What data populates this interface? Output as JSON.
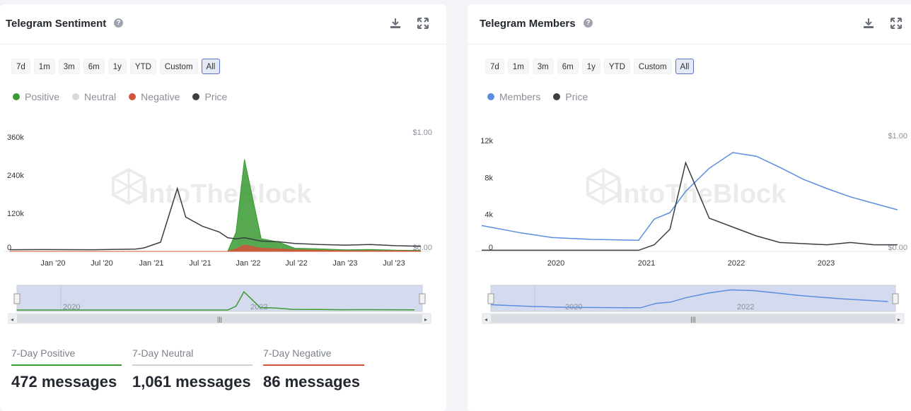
{
  "left": {
    "title": "Telegram Sentiment",
    "ranges": [
      "7d",
      "1m",
      "3m",
      "6m",
      "1y",
      "YTD",
      "Custom",
      "All"
    ],
    "active_range": "All",
    "legend": [
      {
        "label": "Positive",
        "color": "#3a9a32"
      },
      {
        "label": "Neutral",
        "color": "#d8d8d8"
      },
      {
        "label": "Negative",
        "color": "#d0543a"
      },
      {
        "label": "Price",
        "color": "#3a3d42"
      }
    ],
    "watermark": "IntoTheBlock",
    "navigator_labels": [
      "2020",
      "2022"
    ],
    "stats": [
      {
        "label": "7-Day Positive",
        "value": "472 messages",
        "color": "#3a9a32"
      },
      {
        "label": "7-Day Neutral",
        "value": "1,061 messages",
        "color": "#d0d0d0"
      },
      {
        "label": "7-Day Negative",
        "value": "86 messages",
        "color": "#d0543a"
      }
    ]
  },
  "right": {
    "title": "Telegram Members",
    "ranges": [
      "7d",
      "1m",
      "3m",
      "6m",
      "1y",
      "YTD",
      "Custom",
      "All"
    ],
    "active_range": "All",
    "legend": [
      {
        "label": "Members",
        "color": "#5b8dde"
      },
      {
        "label": "Price",
        "color": "#3a3d42"
      }
    ],
    "watermark": "IntoTheBlock",
    "navigator_labels": [
      "2020",
      "2022"
    ]
  },
  "chart_data": [
    {
      "type": "area",
      "title": "Telegram Sentiment",
      "x_ticks": [
        "Jan '20",
        "Jul '20",
        "Jan '21",
        "Jul '21",
        "Jan '22",
        "Jul '22",
        "Jan '23",
        "Jul '23"
      ],
      "y_ticks_left": [
        "0",
        "120k",
        "240k",
        "360k"
      ],
      "y_ticks_right": [
        "$0.00",
        "$1.00"
      ],
      "ylim_left": [
        0,
        360000
      ],
      "ylim_right": [
        0,
        1.0
      ],
      "x_dates": [
        "2019-09",
        "2020-01",
        "2020-07",
        "2020-12",
        "2021-01",
        "2021-03",
        "2021-05",
        "2021-06",
        "2021-08",
        "2021-10",
        "2021-11",
        "2021-12",
        "2022-01",
        "2022-03",
        "2022-05",
        "2022-07",
        "2022-10",
        "2023-01",
        "2023-04",
        "2023-07",
        "2023-10"
      ],
      "series": [
        {
          "name": "Positive",
          "values": [
            0,
            0,
            0,
            0,
            0,
            0,
            0,
            0,
            0,
            0,
            0,
            60000,
            290000,
            40000,
            30000,
            10000,
            8000,
            5000,
            6000,
            4000,
            3000
          ]
        },
        {
          "name": "Negative",
          "values": [
            0,
            0,
            0,
            0,
            0,
            0,
            0,
            0,
            0,
            0,
            0,
            8000,
            20000,
            10000,
            8000,
            5000,
            3000,
            2000,
            2000,
            2000,
            1000
          ]
        },
        {
          "name": "Price",
          "values": [
            0.015,
            0.016,
            0.015,
            0.02,
            0.03,
            0.08,
            0.55,
            0.3,
            0.22,
            0.17,
            0.12,
            0.11,
            0.12,
            0.09,
            0.085,
            0.07,
            0.06,
            0.055,
            0.06,
            0.05,
            0.045
          ]
        }
      ]
    },
    {
      "type": "line",
      "title": "Telegram Members",
      "x_ticks": [
        "2020",
        "2021",
        "2022",
        "2023"
      ],
      "y_ticks_left": [
        "0",
        "4k",
        "8k",
        "12k"
      ],
      "y_ticks_right": [
        "$0.00",
        "$1.00"
      ],
      "ylim_left": [
        0,
        12000
      ],
      "ylim_right": [
        0,
        1.0
      ],
      "x_dates": [
        "2019-04",
        "2019-09",
        "2020-01",
        "2020-06",
        "2020-12",
        "2021-02",
        "2021-04",
        "2021-06",
        "2021-09",
        "2021-12",
        "2022-03",
        "2022-06",
        "2022-09",
        "2022-12",
        "2023-03",
        "2023-06",
        "2023-09"
      ],
      "series": [
        {
          "name": "Members",
          "values": [
            2800,
            2000,
            1500,
            1300,
            1200,
            3500,
            4200,
            6500,
            9000,
            10700,
            10300,
            9100,
            7800,
            6800,
            5900,
            5200,
            4500
          ]
        },
        {
          "name": "Price",
          "values": [
            0.01,
            0.01,
            0.01,
            0.01,
            0.01,
            0.06,
            0.2,
            0.8,
            0.3,
            0.22,
            0.14,
            0.08,
            0.07,
            0.06,
            0.08,
            0.06,
            0.06
          ]
        }
      ]
    }
  ]
}
